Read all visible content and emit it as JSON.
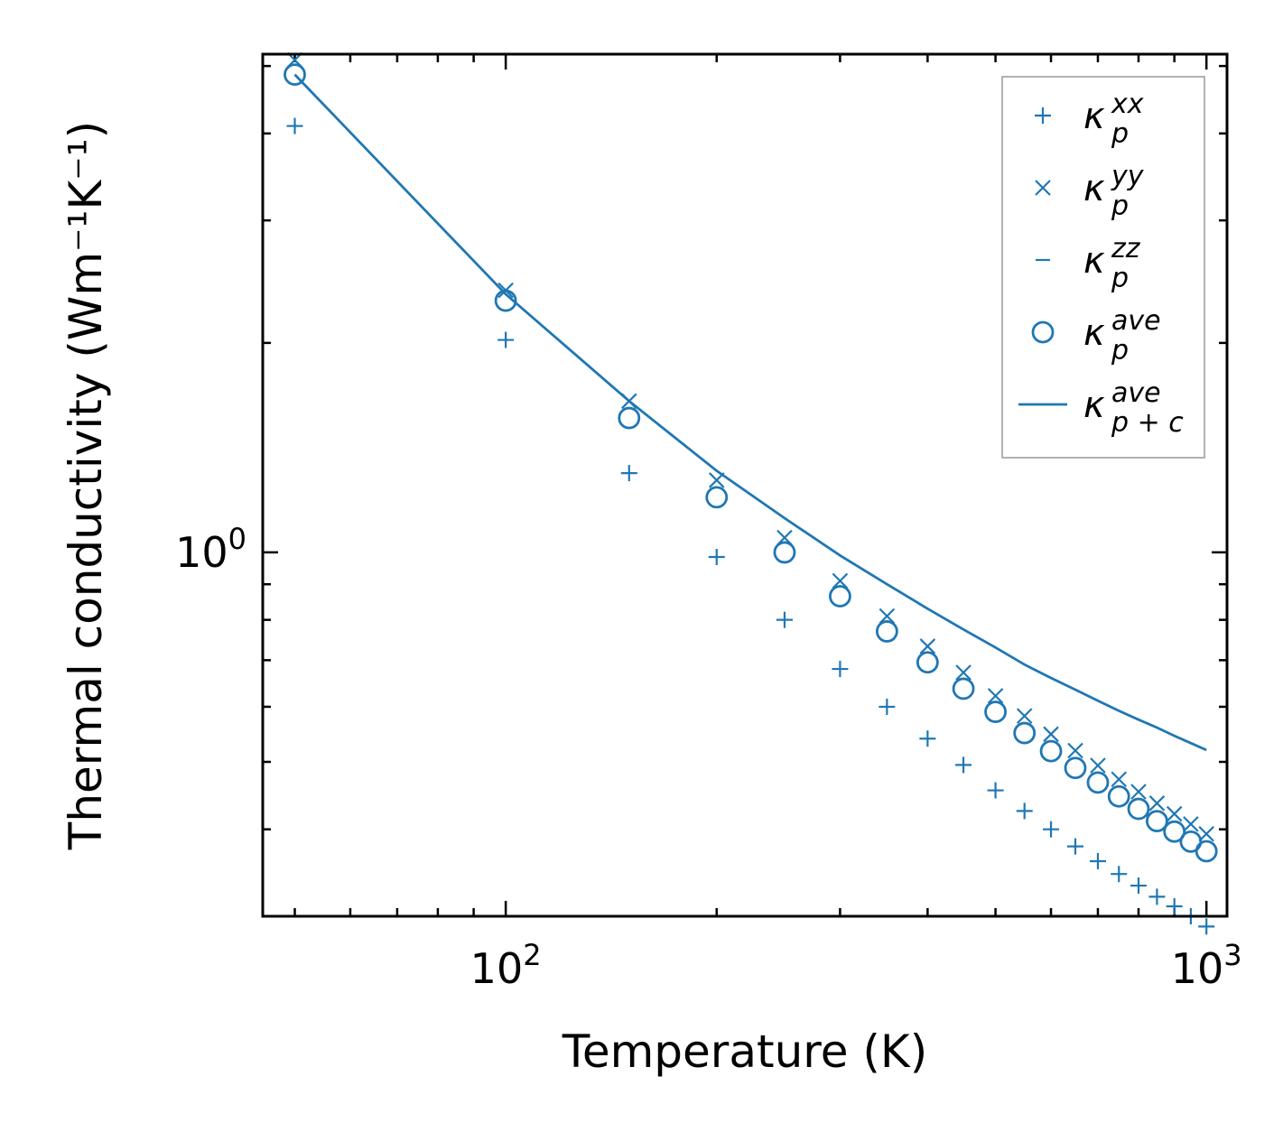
{
  "chart_data": {
    "type": "scatter",
    "xscale": "log",
    "yscale": "log",
    "xlabel": "Temperature (K)",
    "ylabel": "Thermal conductivity (Wm⁻¹K⁻¹)",
    "xlim": [
      45,
      1070
    ],
    "ylim": [
      0.3,
      5.2
    ],
    "xticks": [
      {
        "base": "10",
        "exp": "2",
        "value": 100
      },
      {
        "base": "10",
        "exp": "3",
        "value": 1000
      }
    ],
    "yticks": [
      {
        "base": "10",
        "exp": "0",
        "value": 1
      }
    ],
    "legend_position": "upper right",
    "color": "#1f77b4",
    "x": [
      50,
      100,
      150,
      200,
      250,
      300,
      350,
      400,
      450,
      500,
      550,
      600,
      650,
      700,
      750,
      800,
      850,
      900,
      950,
      1000
    ],
    "series": [
      {
        "name": "κ_p^xx",
        "base": "κ",
        "sup": "xx",
        "sub": "p",
        "marker": "plus",
        "values": [
          4.1,
          2.02,
          1.3,
          0.985,
          0.8,
          0.68,
          0.6,
          0.54,
          0.495,
          0.455,
          0.425,
          0.4,
          0.378,
          0.36,
          0.345,
          0.332,
          0.32,
          0.31,
          0.3,
          0.29
        ]
      },
      {
        "name": "κ_p^yy",
        "base": "κ",
        "sup": "yy",
        "sub": "p",
        "marker": "x",
        "values": [
          5.1,
          2.38,
          1.65,
          1.27,
          1.05,
          0.91,
          0.81,
          0.733,
          0.672,
          0.622,
          0.582,
          0.548,
          0.519,
          0.494,
          0.472,
          0.453,
          0.436,
          0.421,
          0.407,
          0.394
        ]
      },
      {
        "name": "κ_p^zz",
        "base": "κ",
        "sup": "zz",
        "sub": "p",
        "marker": "hline",
        "values": []
      },
      {
        "name": "κ_p^ave",
        "base": "κ",
        "sup": "ave",
        "sub": "p",
        "marker": "circle",
        "values": [
          4.86,
          2.3,
          1.56,
          1.2,
          1.0,
          0.865,
          0.77,
          0.695,
          0.637,
          0.59,
          0.55,
          0.518,
          0.49,
          0.467,
          0.446,
          0.428,
          0.411,
          0.397,
          0.384,
          0.372
        ]
      },
      {
        "name": "κ_p+c^ave",
        "base": "κ",
        "sup": "ave",
        "sub": "p + c",
        "marker": "line",
        "values": [
          4.86,
          2.35,
          1.65,
          1.31,
          1.12,
          0.99,
          0.9,
          0.83,
          0.775,
          0.73,
          0.69,
          0.66,
          0.635,
          0.612,
          0.592,
          0.575,
          0.56,
          0.545,
          0.532,
          0.52
        ]
      }
    ]
  }
}
